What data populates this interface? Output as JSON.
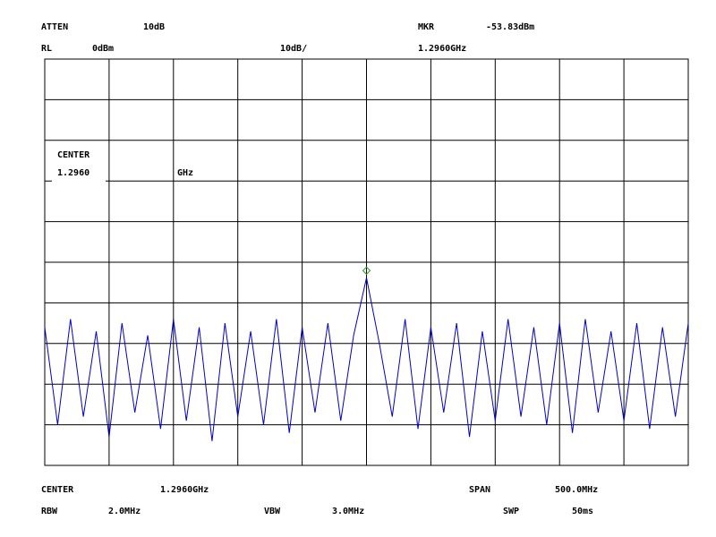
{
  "chart_data": {
    "type": "line",
    "header": {
      "atten_label": "ATTEN",
      "atten": "10dB",
      "mkr_label": "MKR",
      "rl_label": "RL",
      "rl": "0dBm",
      "scale": "10dB/"
    },
    "marker": {
      "x": 1296,
      "y": -53.83,
      "y_label": "-53.83dBm",
      "x_label": "1.2960GHz"
    },
    "center_box": {
      "label": "CENTER",
      "value": "1.2960",
      "unit": "GHz"
    },
    "footer": {
      "center_label": "CENTER",
      "center": "1.2960GHz",
      "span_label": "SPAN",
      "span": "500.0MHz",
      "rbw_label": "RBW",
      "rbw": "2.0MHz",
      "vbw_label": "VBW",
      "vbw": "3.0MHz",
      "swp_label": "SWP",
      "swp": "50ms"
    },
    "xlim": [
      1046,
      1546
    ],
    "ylim": [
      -100,
      0
    ],
    "series": [
      {
        "color": "#0000cc",
        "x": [
          1046,
          1056,
          1066,
          1076,
          1086,
          1096,
          1106,
          1116,
          1126,
          1136,
          1146,
          1156,
          1166,
          1176,
          1186,
          1196,
          1206,
          1216,
          1226,
          1236,
          1246,
          1256,
          1266,
          1276,
          1286,
          1296,
          1306,
          1316,
          1326,
          1336,
          1346,
          1356,
          1366,
          1376,
          1386,
          1396,
          1406,
          1416,
          1426,
          1436,
          1446,
          1456,
          1466,
          1476,
          1486,
          1496,
          1506,
          1516,
          1526,
          1536,
          1546
        ],
        "values": [
          -66,
          -90,
          -64,
          -88,
          -67,
          -93,
          -65,
          -87,
          -68,
          -91,
          -64,
          -89,
          -66,
          -94,
          -65,
          -88,
          -67,
          -90,
          -64,
          -92,
          -66,
          -87,
          -65,
          -89,
          -68,
          -53.83,
          -70,
          -88,
          -64,
          -91,
          -66,
          -87,
          -65,
          -93,
          -67,
          -89,
          -64,
          -88,
          -66,
          -90,
          -65,
          -92,
          -64,
          -87,
          -67,
          -89,
          -65,
          -91,
          -66,
          -88,
          -65
        ]
      }
    ]
  }
}
